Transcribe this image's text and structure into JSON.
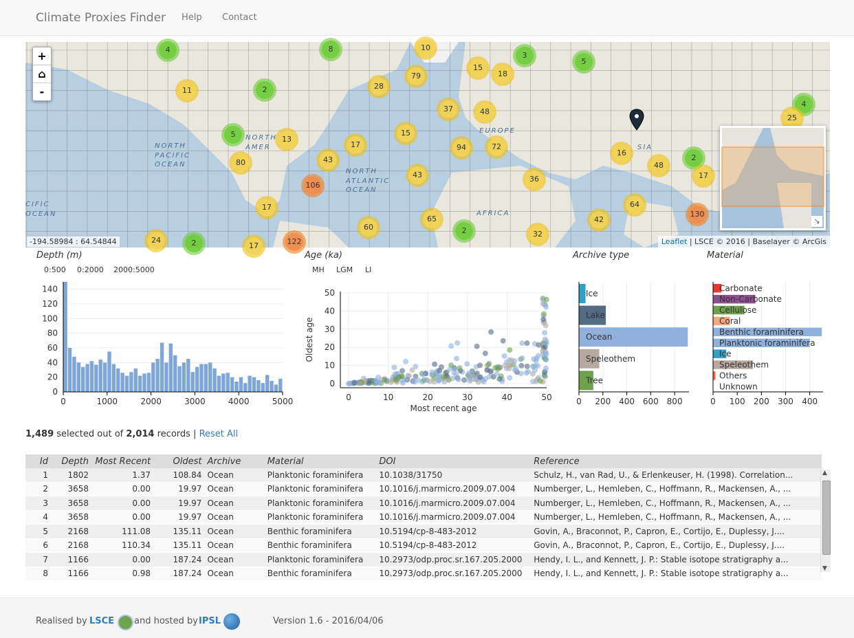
{
  "nav": {
    "brand": "Climate Proxies Finder",
    "help": "Help",
    "contact": "Contact"
  },
  "map": {
    "zoom_in": "+",
    "zoom_home": "⌂",
    "zoom_out": "-",
    "coords": "-194.58984 : 64.54844",
    "attribution_link": "Leaflet",
    "attribution_rest": "| LSCE © 2016 | Baselayer © ArcGis",
    "labels": [
      "NORTH PACIFIC OCEAN",
      "NORTH ATLANTIC OCEAN",
      "CIFIC OCEAN",
      "NORTH AMER",
      "EUROPE",
      "SIA",
      "AFRICA"
    ],
    "clusters": [
      "4",
      "8",
      "10",
      "3",
      "5",
      "11",
      "2",
      "28",
      "79",
      "15",
      "18",
      "37",
      "48",
      "4",
      "25",
      "5",
      "13",
      "17",
      "15",
      "94",
      "72",
      "16",
      "80",
      "43",
      "43",
      "106",
      "48",
      "2",
      "17",
      "36",
      "64",
      "130",
      "42",
      "17",
      "60",
      "65",
      "2",
      "32",
      "24",
      "2",
      "17",
      "122"
    ]
  },
  "depth": {
    "title": "Depth (m)",
    "filters": [
      "0:500",
      "0:2000",
      "2000:5000"
    ]
  },
  "age": {
    "title": "Age (ka)",
    "filters": [
      "MH",
      "LGM",
      "LI"
    ],
    "xlabel": "Most recent age",
    "ylabel": "Oldest age"
  },
  "archive": {
    "title": "Archive type"
  },
  "material": {
    "title": "Material"
  },
  "chart_data": [
    {
      "type": "bar",
      "title": "Depth (m)",
      "xlim": [
        0,
        5000
      ],
      "ylim": [
        0,
        150
      ],
      "xticks": [
        "0",
        "1000",
        "2000",
        "3000",
        "4000",
        "5000"
      ],
      "yticks": [
        "0",
        "20",
        "40",
        "60",
        "80",
        "100",
        "120",
        "140"
      ],
      "bin_width": 100,
      "values": [
        150,
        60,
        48,
        40,
        34,
        38,
        42,
        37,
        44,
        40,
        55,
        38,
        32,
        26,
        22,
        27,
        32,
        22,
        25,
        26,
        40,
        45,
        67,
        40,
        66,
        50,
        35,
        40,
        45,
        27,
        34,
        38,
        38,
        40,
        32,
        22,
        25,
        26,
        20,
        14,
        20,
        12,
        22,
        20,
        16,
        12,
        23,
        15,
        10,
        18
      ]
    },
    {
      "type": "scatter",
      "title": "Age (ka)",
      "xlabel": "Most recent age",
      "ylabel": "Oldest age",
      "xlim": [
        0,
        50
      ],
      "ylim": [
        0,
        50
      ],
      "xticks": [
        "0",
        "10",
        "20",
        "30",
        "40",
        "50"
      ],
      "yticks": [
        "0",
        "10",
        "20",
        "30",
        "40",
        "50"
      ]
    },
    {
      "type": "bar",
      "orientation": "horizontal",
      "title": "Archive type",
      "categories": [
        "Ice",
        "Lake",
        "Ocean",
        "Speleothem",
        "Tree"
      ],
      "values": [
        55,
        225,
        910,
        170,
        120
      ],
      "colors": [
        "#31a0c4",
        "#546b86",
        "#8fb1dc",
        "#b6a99f",
        "#6da14b"
      ],
      "xlim": [
        0,
        920
      ],
      "xticks": [
        "0",
        "200",
        "400",
        "600",
        "800"
      ]
    },
    {
      "type": "bar",
      "orientation": "horizontal",
      "title": "Material",
      "categories": [
        "Carbonate",
        "Non-Carbonate",
        "Cellulose",
        "Coral",
        "Benthic foraminifera",
        "Planktonic foraminifera",
        "Ice",
        "Speleothem",
        "Others",
        "Unknown"
      ],
      "values": [
        35,
        175,
        130,
        70,
        450,
        400,
        55,
        165,
        10,
        0
      ],
      "colors": [
        "#e53935",
        "#8e4f8e",
        "#6da14b",
        "#f4a582",
        "#8fb1dc",
        "#8fb1dc",
        "#31a0c4",
        "#b6a99f",
        "#f4693f",
        "#cccccc"
      ],
      "xlim": [
        0,
        455
      ],
      "xticks": [
        "0",
        "100",
        "200",
        "300",
        "400"
      ]
    }
  ],
  "summary": {
    "selected": "1,489",
    "mid": " selected out of ",
    "total": "2,014",
    "suffix": " records | ",
    "reset": "Reset All"
  },
  "table": {
    "headers": [
      "Id",
      "Depth",
      "Most Recent",
      "Oldest",
      "Archive",
      "Material",
      "DOI",
      "Reference"
    ],
    "rows": [
      [
        "1",
        "1802",
        "1.37",
        "108.84",
        "Ocean",
        "Planktonic foraminifera",
        "10.1038/31750",
        "Schulz, H., van Rad, U., & Erlenkeuser, H. (1998). Correlation..."
      ],
      [
        "2",
        "3658",
        "0.00",
        "19.97",
        "Ocean",
        "Planktonic foraminifera",
        "10.1016/j.marmicro.2009.07.004",
        "Numberger, L., Hemleben, C., Hoffmann, R., Mackensen, A., ..."
      ],
      [
        "3",
        "3658",
        "0.00",
        "19.97",
        "Ocean",
        "Planktonic foraminifera",
        "10.1016/j.marmicro.2009.07.004",
        "Numberger, L., Hemleben, C., Hoffmann, R., Mackensen, A., ..."
      ],
      [
        "4",
        "3658",
        "0.00",
        "19.97",
        "Ocean",
        "Planktonic foraminifera",
        "10.1016/j.marmicro.2009.07.004",
        "Numberger, L., Hemleben, C., Hoffmann, R., Mackensen, A., ..."
      ],
      [
        "5",
        "2168",
        "111.08",
        "135.11",
        "Ocean",
        "Benthic foraminifera",
        "10.5194/cp-8-483-2012",
        "Govin, A., Braconnot, P., Capron, E., Cortijo, E., Duplessy, J...."
      ],
      [
        "6",
        "2168",
        "110.34",
        "135.11",
        "Ocean",
        "Benthic foraminifera",
        "10.5194/cp-8-483-2012",
        "Govin, A., Braconnot, P., Capron, E., Cortijo, E., Duplessy, J...."
      ],
      [
        "7",
        "1166",
        "0.00",
        "187.24",
        "Ocean",
        "Planktonic foraminifera",
        "10.2973/odp.proc.sr.167.205.2000",
        "Hendy, I. L., and Kennett, J. P.: Stable isotope stratigraphy a..."
      ],
      [
        "8",
        "1166",
        "0.98",
        "187.24",
        "Ocean",
        "Benthic foraminifera",
        "10.2973/odp.proc.sr.167.205.2000",
        "Hendy, I. L., and Kennett, J. P.: Stable isotope stratigraphy a..."
      ]
    ]
  },
  "footer": {
    "realised": "Realised by",
    "lsce": "LSCE",
    "hosted": "and hosted by",
    "ipsl": "IPSL",
    "version": "Version 1.6 - 2016/04/06"
  }
}
